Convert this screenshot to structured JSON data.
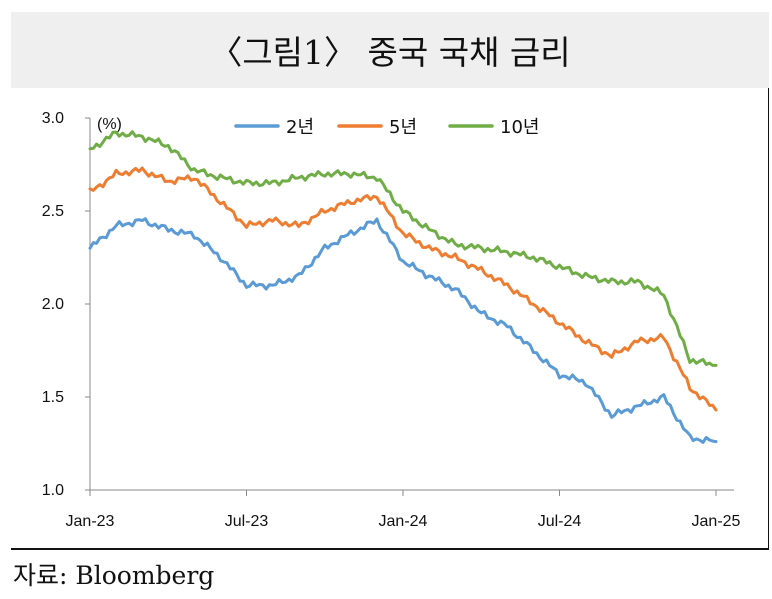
{
  "title": "〈그림1〉 중국 국채 금리",
  "source": "자료: Bloomberg",
  "chart_data": {
    "type": "line",
    "ylabel": "(%)",
    "ylim": [
      1.0,
      3.0
    ],
    "yticks": [
      {
        "value": 1.0,
        "label": "1.0"
      },
      {
        "value": 1.5,
        "label": "1.5"
      },
      {
        "value": 2.0,
        "label": "2.0"
      },
      {
        "value": 2.5,
        "label": "2.5"
      },
      {
        "value": 3.0,
        "label": "3.0"
      }
    ],
    "xlim": [
      "2023-01",
      "2025-01"
    ],
    "xticks": [
      {
        "x": "2023-01",
        "label": "Jan-23"
      },
      {
        "x": "2023-07",
        "label": "Jul-23"
      },
      {
        "x": "2024-01",
        "label": "Jan-24"
      },
      {
        "x": "2024-07",
        "label": "Jul-24"
      },
      {
        "x": "2025-01",
        "label": "Jan-25"
      }
    ],
    "grid": false,
    "legend_position": "top",
    "x": [
      "2023-01",
      "2023-02",
      "2023-03",
      "2023-04",
      "2023-05",
      "2023-06",
      "2023-07",
      "2023-08",
      "2023-09",
      "2023-10",
      "2023-11",
      "2023-12",
      "2024-01",
      "2024-02",
      "2024-03",
      "2024-04",
      "2024-05",
      "2024-06",
      "2024-07",
      "2024-08",
      "2024-09",
      "2024-10",
      "2024-11",
      "2024-12",
      "2025-01"
    ],
    "series": [
      {
        "name": "2년",
        "color": "#5b9bd5",
        "values": [
          2.3,
          2.42,
          2.45,
          2.4,
          2.37,
          2.25,
          2.1,
          2.1,
          2.15,
          2.3,
          2.38,
          2.45,
          2.23,
          2.15,
          2.08,
          1.95,
          1.88,
          1.75,
          1.62,
          1.58,
          1.4,
          1.45,
          1.5,
          1.28,
          1.26
        ]
      },
      {
        "name": "5년",
        "color": "#ed7d31",
        "values": [
          2.6,
          2.7,
          2.72,
          2.66,
          2.68,
          2.55,
          2.42,
          2.45,
          2.42,
          2.5,
          2.55,
          2.58,
          2.38,
          2.3,
          2.25,
          2.18,
          2.1,
          2.0,
          1.9,
          1.8,
          1.72,
          1.8,
          1.82,
          1.55,
          1.43
        ]
      },
      {
        "name": "10년",
        "color": "#70ad47",
        "values": [
          2.83,
          2.92,
          2.9,
          2.85,
          2.72,
          2.68,
          2.65,
          2.65,
          2.68,
          2.7,
          2.7,
          2.68,
          2.5,
          2.4,
          2.32,
          2.3,
          2.28,
          2.25,
          2.2,
          2.15,
          2.12,
          2.12,
          2.05,
          1.7,
          1.67
        ]
      }
    ]
  }
}
